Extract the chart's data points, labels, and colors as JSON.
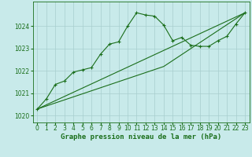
{
  "title": "Graphe pression niveau de la mer (hPa)",
  "bg_color": "#c8eaea",
  "plot_bg_color": "#c8eaea",
  "line_color": "#1a6e1a",
  "grid_color": "#a8cece",
  "xlim": [
    -0.5,
    23.5
  ],
  "ylim": [
    1019.7,
    1025.1
  ],
  "yticks": [
    1020,
    1021,
    1022,
    1023,
    1024
  ],
  "xticks": [
    0,
    1,
    2,
    3,
    4,
    5,
    6,
    7,
    8,
    9,
    10,
    11,
    12,
    13,
    14,
    15,
    16,
    17,
    18,
    19,
    20,
    21,
    22,
    23
  ],
  "series1_x": [
    0,
    1,
    2,
    3,
    4,
    5,
    6,
    7,
    8,
    9,
    10,
    11,
    12,
    13,
    14,
    15,
    16,
    17,
    18,
    19,
    20,
    21,
    22,
    23
  ],
  "series1_y": [
    1020.3,
    1020.75,
    1021.4,
    1021.55,
    1021.95,
    1022.05,
    1022.15,
    1022.75,
    1023.2,
    1023.3,
    1024.0,
    1024.6,
    1024.5,
    1024.45,
    1024.05,
    1023.35,
    1023.5,
    1023.15,
    1023.1,
    1023.1,
    1023.35,
    1023.55,
    1024.1,
    1024.6
  ],
  "series2_x": [
    0,
    23
  ],
  "series2_y": [
    1020.3,
    1024.6
  ],
  "series3_x": [
    0,
    14,
    23
  ],
  "series3_y": [
    1020.3,
    1022.2,
    1024.6
  ],
  "marker": "+",
  "marker_size": 3,
  "linewidth": 0.8,
  "title_fontsize": 6.5,
  "tick_fontsize": 5.5
}
